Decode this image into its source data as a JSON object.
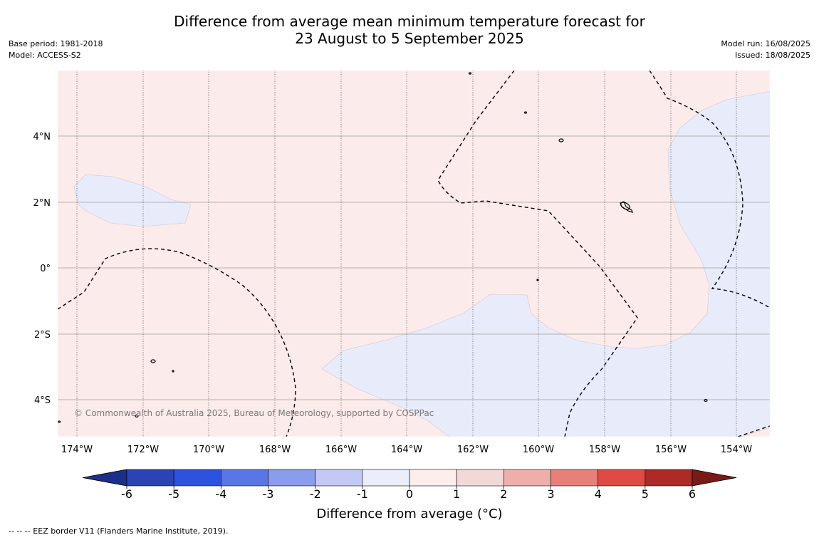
{
  "header": {
    "title_line1": "Difference from average mean minimum temperature forecast for",
    "title_line2": "23 August to 5 September 2025",
    "base_period": "Base period: 1981-2018",
    "model": "Model: ACCESS-S2",
    "model_run": "Model run: 16/08/2025",
    "issued": "Issued: 18/08/2025"
  },
  "map": {
    "lat_labels": [
      "4°N",
      "2°N",
      "0°",
      "2°S",
      "4°S"
    ],
    "lon_labels": [
      "174°W",
      "172°W",
      "170°W",
      "168°W",
      "166°W",
      "164°W",
      "162°W",
      "160°W",
      "158°W",
      "156°W",
      "154°W"
    ],
    "copyright": "© Commonwealth of Australia 2025, Bureau of Meteorology, supported by COSPPac",
    "fill_colors": {
      "warm": "#fbebea",
      "cool": "#e8ebfa"
    }
  },
  "colorbar": {
    "ticks": [
      "-6",
      "-5",
      "-4",
      "-3",
      "-2",
      "-1",
      "0",
      "1",
      "2",
      "3",
      "4",
      "5",
      "6"
    ],
    "colors": [
      "#1c2f88",
      "#2a43b5",
      "#2d52e0",
      "#5a76e6",
      "#8a9cec",
      "#c3c9f4",
      "#ebedfb",
      "#fdeeec",
      "#f0d9d6",
      "#eeaeaa",
      "#e8807a",
      "#df4b42",
      "#ad2a26",
      "#7a1a17"
    ],
    "label": "Difference from average (°C)"
  },
  "footnote": "--  --  -- EEZ border V11 (Flanders Marine Institute, 2019)."
}
